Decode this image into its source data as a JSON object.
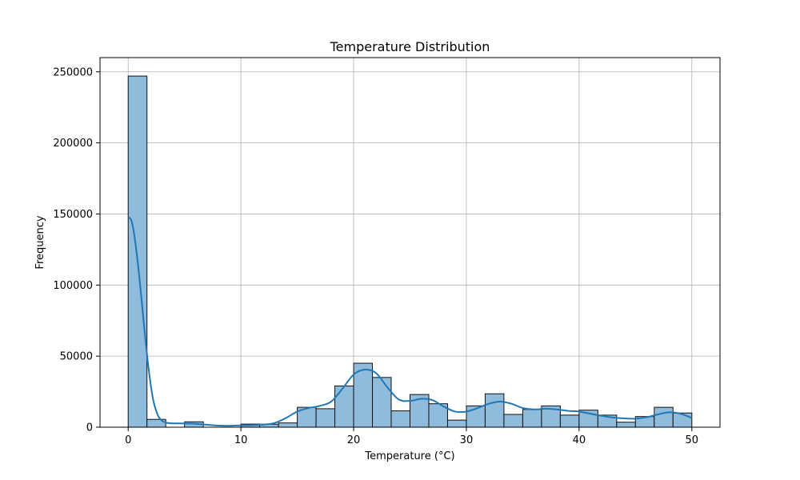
{
  "chart_data": {
    "type": "bar",
    "title": "Temperature Distribution",
    "xlabel": "Temperature (°C)",
    "ylabel": "Frequency",
    "xlim": [
      -2.5,
      52.5
    ],
    "ylim": [
      0,
      260000
    ],
    "xticks": [
      0,
      10,
      20,
      30,
      40,
      50
    ],
    "yticks": [
      0,
      50000,
      100000,
      150000,
      200000,
      250000
    ],
    "grid": true,
    "bar_color": "#8fbbdc",
    "bar_edge_color": "#111111",
    "kde_color": "#1f77b4",
    "bins": [
      {
        "x0": 0.0,
        "x1": 1.667,
        "value": 247000
      },
      {
        "x0": 1.667,
        "x1": 3.333,
        "value": 5500
      },
      {
        "x0": 3.333,
        "x1": 5.0,
        "value": 0
      },
      {
        "x0": 5.0,
        "x1": 6.667,
        "value": 3800
      },
      {
        "x0": 6.667,
        "x1": 8.333,
        "value": 0
      },
      {
        "x0": 8.333,
        "x1": 10.0,
        "value": 0
      },
      {
        "x0": 10.0,
        "x1": 11.667,
        "value": 2200
      },
      {
        "x0": 11.667,
        "x1": 13.333,
        "value": 2100
      },
      {
        "x0": 13.333,
        "x1": 15.0,
        "value": 3000
      },
      {
        "x0": 15.0,
        "x1": 16.667,
        "value": 14000
      },
      {
        "x0": 16.667,
        "x1": 18.333,
        "value": 13000
      },
      {
        "x0": 18.333,
        "x1": 20.0,
        "value": 29000
      },
      {
        "x0": 20.0,
        "x1": 21.667,
        "value": 45000
      },
      {
        "x0": 21.667,
        "x1": 23.333,
        "value": 35000
      },
      {
        "x0": 23.333,
        "x1": 25.0,
        "value": 11500
      },
      {
        "x0": 25.0,
        "x1": 26.667,
        "value": 23000
      },
      {
        "x0": 26.667,
        "x1": 28.333,
        "value": 16500
      },
      {
        "x0": 28.333,
        "x1": 30.0,
        "value": 5000
      },
      {
        "x0": 30.0,
        "x1": 31.667,
        "value": 15000
      },
      {
        "x0": 31.667,
        "x1": 33.333,
        "value": 23500
      },
      {
        "x0": 33.333,
        "x1": 35.0,
        "value": 9000
      },
      {
        "x0": 35.0,
        "x1": 36.667,
        "value": 12500
      },
      {
        "x0": 36.667,
        "x1": 38.333,
        "value": 15000
      },
      {
        "x0": 38.333,
        "x1": 40.0,
        "value": 8500
      },
      {
        "x0": 40.0,
        "x1": 41.667,
        "value": 12000
      },
      {
        "x0": 41.667,
        "x1": 43.333,
        "value": 8500
      },
      {
        "x0": 43.333,
        "x1": 45.0,
        "value": 3500
      },
      {
        "x0": 45.0,
        "x1": 46.667,
        "value": 7500
      },
      {
        "x0": 46.667,
        "x1": 48.333,
        "value": 14000
      },
      {
        "x0": 48.333,
        "x1": 50.0,
        "value": 10000
      }
    ],
    "kde": [
      [
        0,
        148000
      ],
      [
        0.3,
        145000
      ],
      [
        0.6,
        132000
      ],
      [
        1.0,
        105000
      ],
      [
        1.4,
        72000
      ],
      [
        1.8,
        42000
      ],
      [
        2.2,
        20000
      ],
      [
        2.6,
        9000
      ],
      [
        3.0,
        4500
      ],
      [
        3.5,
        3000
      ],
      [
        4.0,
        2700
      ],
      [
        5.0,
        2600
      ],
      [
        6.0,
        2400
      ],
      [
        7.0,
        1700
      ],
      [
        8.0,
        1100
      ],
      [
        9.0,
        1000
      ],
      [
        10.0,
        1300
      ],
      [
        11.0,
        1500
      ],
      [
        12.0,
        1800
      ],
      [
        13.0,
        3000
      ],
      [
        14.0,
        6500
      ],
      [
        15.0,
        11000
      ],
      [
        16.0,
        13500
      ],
      [
        17.0,
        15000
      ],
      [
        18.0,
        18000
      ],
      [
        19.0,
        27000
      ],
      [
        20.0,
        37000
      ],
      [
        21.0,
        40500
      ],
      [
        22.0,
        38000
      ],
      [
        23.0,
        28000
      ],
      [
        24.0,
        19500
      ],
      [
        25.0,
        18500
      ],
      [
        26.0,
        20000
      ],
      [
        27.0,
        19000
      ],
      [
        28.0,
        14500
      ],
      [
        29.0,
        11000
      ],
      [
        30.0,
        11000
      ],
      [
        31.0,
        13500
      ],
      [
        32.0,
        16500
      ],
      [
        33.0,
        18000
      ],
      [
        34.0,
        16500
      ],
      [
        35.0,
        13500
      ],
      [
        36.0,
        12500
      ],
      [
        37.0,
        13000
      ],
      [
        38.0,
        12500
      ],
      [
        39.0,
        11500
      ],
      [
        40.0,
        11000
      ],
      [
        41.0,
        9500
      ],
      [
        42.0,
        8000
      ],
      [
        43.0,
        6800
      ],
      [
        44.0,
        6200
      ],
      [
        45.0,
        6000
      ],
      [
        46.0,
        7000
      ],
      [
        47.0,
        9000
      ],
      [
        48.0,
        10500
      ],
      [
        49.0,
        9500
      ],
      [
        50.0,
        6500
      ]
    ]
  }
}
